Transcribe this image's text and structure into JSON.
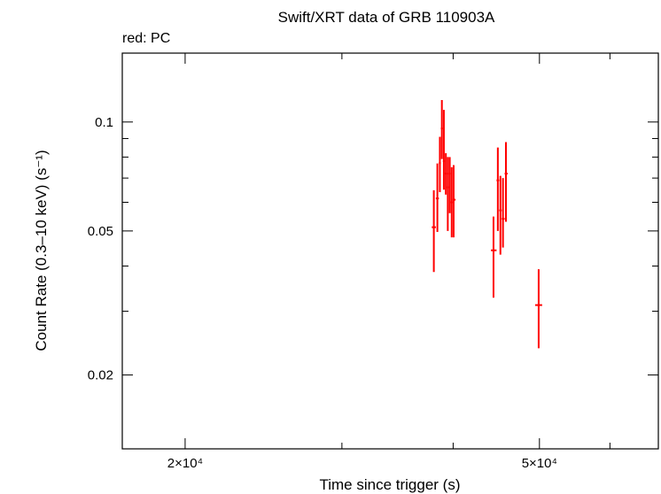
{
  "chart_data": {
    "type": "scatter",
    "title": "Swift/XRT data of GRB 110903A",
    "subtitle": "red: PC",
    "xlabel": "Time since trigger (s)",
    "ylabel": "Count Rate (0.3–10 keV) (s⁻¹)",
    "xscale": "log",
    "yscale": "log",
    "xlim": [
      17000,
      68000
    ],
    "ylim": [
      0.0125,
      0.155
    ],
    "x_ticklabels": [
      {
        "value": 20000,
        "text": "2×10⁴"
      },
      {
        "value": 50000,
        "text": "5×10⁴"
      }
    ],
    "y_ticklabels": [
      {
        "value": 0.1,
        "text": "0.1"
      },
      {
        "value": 0.05,
        "text": "0.05"
      },
      {
        "value": 0.02,
        "text": "0.02"
      }
    ],
    "grid": false,
    "series_color": "#ff0000",
    "points": [
      {
        "x": 38050,
        "xlo": 37850,
        "xhi": 38250,
        "y": 0.0512,
        "ylo": 0.0385,
        "yhi": 0.0648
      },
      {
        "x": 38400,
        "xlo": 38250,
        "xhi": 38550,
        "y": 0.0615,
        "ylo": 0.0497,
        "yhi": 0.0768
      },
      {
        "x": 38650,
        "xlo": 38550,
        "xhi": 38750,
        "y": 0.077,
        "ylo": 0.064,
        "yhi": 0.091
      },
      {
        "x": 38850,
        "xlo": 38750,
        "xhi": 38950,
        "y": 0.096,
        "ylo": 0.079,
        "yhi": 0.115
      },
      {
        "x": 39050,
        "xlo": 38950,
        "xhi": 39150,
        "y": 0.078,
        "ylo": 0.065,
        "yhi": 0.108
      },
      {
        "x": 39250,
        "xlo": 39150,
        "xhi": 39350,
        "y": 0.072,
        "ylo": 0.063,
        "yhi": 0.082
      },
      {
        "x": 39450,
        "xlo": 39350,
        "xhi": 39550,
        "y": 0.066,
        "ylo": 0.05,
        "yhi": 0.08
      },
      {
        "x": 39650,
        "xlo": 39550,
        "xhi": 39750,
        "y": 0.072,
        "ylo": 0.056,
        "yhi": 0.08
      },
      {
        "x": 39850,
        "xlo": 39750,
        "xhi": 39950,
        "y": 0.06,
        "ylo": 0.048,
        "yhi": 0.075
      },
      {
        "x": 40050,
        "xlo": 39950,
        "xhi": 40250,
        "y": 0.061,
        "ylo": 0.048,
        "yhi": 0.076
      },
      {
        "x": 44400,
        "xlo": 44100,
        "xhi": 44750,
        "y": 0.0442,
        "ylo": 0.0327,
        "yhi": 0.0548
      },
      {
        "x": 44900,
        "xlo": 44750,
        "xhi": 45050,
        "y": 0.069,
        "ylo": 0.05,
        "yhi": 0.085
      },
      {
        "x": 45200,
        "xlo": 45050,
        "xhi": 45350,
        "y": 0.057,
        "ylo": 0.043,
        "yhi": 0.071
      },
      {
        "x": 45500,
        "xlo": 45350,
        "xhi": 45700,
        "y": 0.054,
        "ylo": 0.045,
        "yhi": 0.07
      },
      {
        "x": 45850,
        "xlo": 45700,
        "xhi": 46050,
        "y": 0.072,
        "ylo": 0.053,
        "yhi": 0.088
      },
      {
        "x": 49900,
        "xlo": 49450,
        "xhi": 50350,
        "y": 0.0312,
        "ylo": 0.0237,
        "yhi": 0.0392
      }
    ]
  }
}
